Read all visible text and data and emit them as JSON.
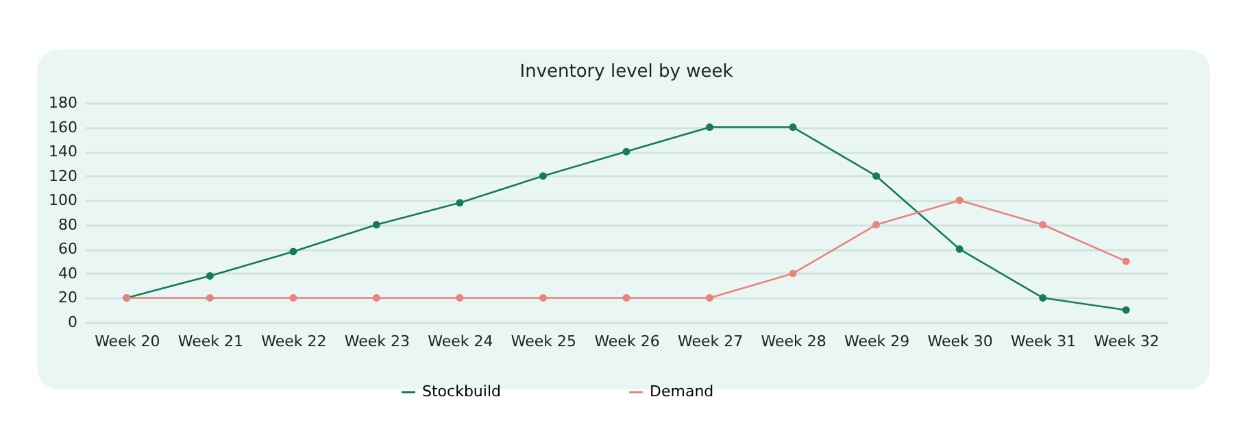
{
  "chart_data": {
    "type": "line",
    "title": "Inventory level by week",
    "categories": [
      "Week 20",
      "Week 21",
      "Week 22",
      "Week 23",
      "Week 24",
      "Week 25",
      "Week 26",
      "Week 27",
      "Week 28",
      "Week 29",
      "Week 30",
      "Week 31",
      "Week 32"
    ],
    "series": [
      {
        "name": "Stockbuild",
        "color": "#177a5c",
        "values": [
          20,
          38,
          58,
          80,
          98,
          120,
          140,
          160,
          160,
          120,
          60,
          20,
          10
        ]
      },
      {
        "name": "Demand",
        "color": "#e8847c",
        "values": [
          20,
          20,
          20,
          20,
          20,
          20,
          20,
          20,
          40,
          80,
          100,
          80,
          50
        ]
      }
    ],
    "ylim": [
      0,
      180
    ],
    "yticks": [
      0,
      20,
      40,
      60,
      80,
      100,
      120,
      140,
      160,
      180
    ],
    "grid": "y",
    "legend": "bottom",
    "marker": "circle",
    "line_style": "solid"
  }
}
